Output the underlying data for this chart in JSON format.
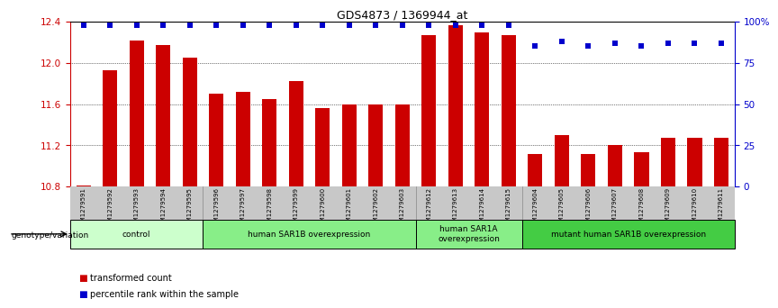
{
  "title": "GDS4873 / 1369944_at",
  "samples": [
    "GSM1279591",
    "GSM1279592",
    "GSM1279593",
    "GSM1279594",
    "GSM1279595",
    "GSM1279596",
    "GSM1279597",
    "GSM1279598",
    "GSM1279599",
    "GSM1279600",
    "GSM1279601",
    "GSM1279602",
    "GSM1279603",
    "GSM1279612",
    "GSM1279613",
    "GSM1279614",
    "GSM1279615",
    "GSM1279604",
    "GSM1279605",
    "GSM1279606",
    "GSM1279607",
    "GSM1279608",
    "GSM1279609",
    "GSM1279610",
    "GSM1279611"
  ],
  "bar_values": [
    10.81,
    11.93,
    12.22,
    12.17,
    12.05,
    11.7,
    11.72,
    11.65,
    11.82,
    11.56,
    11.6,
    11.6,
    11.6,
    12.27,
    12.36,
    12.29,
    12.27,
    11.12,
    11.3,
    11.12,
    11.2,
    11.13,
    11.27,
    11.27,
    11.27
  ],
  "percentile_values": [
    98,
    98,
    98,
    98,
    98,
    98,
    98,
    98,
    98,
    98,
    98,
    98,
    98,
    98,
    98,
    98,
    98,
    85,
    88,
    85,
    87,
    85,
    87,
    87,
    87
  ],
  "ylim_left": [
    10.8,
    12.4
  ],
  "ylim_right": [
    0,
    100
  ],
  "yticks_left": [
    10.8,
    11.2,
    11.6,
    12.0,
    12.4
  ],
  "yticks_right": [
    0,
    25,
    50,
    75,
    100
  ],
  "ytick_labels_right": [
    "0",
    "25",
    "50",
    "75",
    "100%"
  ],
  "bar_color": "#cc0000",
  "dot_color": "#0000cc",
  "groups": [
    {
      "label": "control",
      "start": 0,
      "end": 5,
      "color": "#ccffcc"
    },
    {
      "label": "human SAR1B overexpression",
      "start": 5,
      "end": 13,
      "color": "#88ee88"
    },
    {
      "label": "human SAR1A\noverexpression",
      "start": 13,
      "end": 17,
      "color": "#88ee88"
    },
    {
      "label": "mutant human SAR1B overexpression",
      "start": 17,
      "end": 25,
      "color": "#44cc44"
    }
  ],
  "group_boundaries": [
    5,
    13,
    17
  ],
  "xlabel_row_color": "#c8c8c8",
  "legend_items": [
    {
      "color": "#cc0000",
      "label": "transformed count"
    },
    {
      "color": "#0000cc",
      "label": "percentile rank within the sample"
    }
  ],
  "genotype_label": "genotype/variation"
}
